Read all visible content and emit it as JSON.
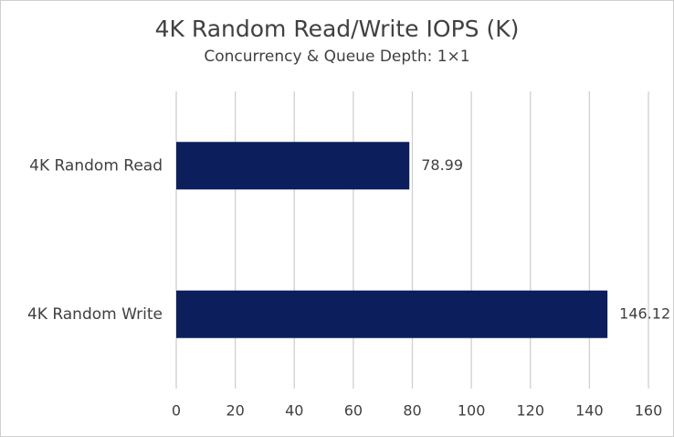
{
  "chart_data": {
    "type": "bar",
    "orientation": "horizontal",
    "title": "4K Random Read/Write IOPS (K)",
    "subtitle": "Concurrency & Queue Depth: 1×1",
    "categories": [
      "4K Random Read",
      "4K Random Write"
    ],
    "values": [
      78.99,
      146.12
    ],
    "color": "#0c1f5c",
    "xlim": [
      0,
      160
    ],
    "xticks": [
      0,
      20,
      40,
      60,
      80,
      100,
      120,
      140,
      160
    ],
    "grid": true
  }
}
